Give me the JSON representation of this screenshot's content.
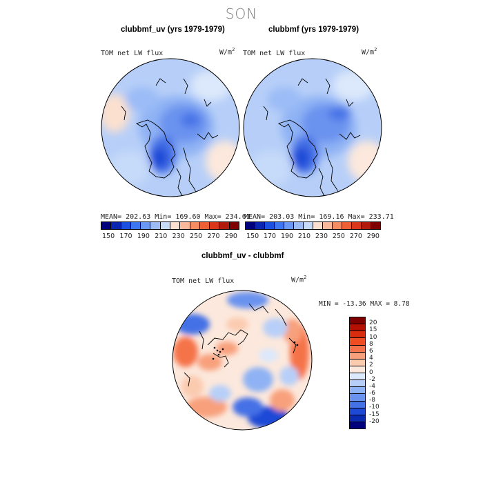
{
  "page_title": "SON",
  "panels": [
    {
      "title": "clubbmf_uv (yrs 1979-1979)",
      "variable": "TOM net LW flux",
      "units": "W/m",
      "units_exp": "2",
      "stats": "MEAN= 202.63   Min= 169.60   Max= 234.61"
    },
    {
      "title": "clubbmf (yrs 1979-1979)",
      "variable": "TOM net LW flux",
      "units": "W/m",
      "units_exp": "2",
      "stats": "MEAN= 203.03   Min= 169.16   Max= 233.71"
    }
  ],
  "difference": {
    "title": "clubbmf_uv - clubbmf",
    "variable": "TOM net LW flux",
    "units": "W/m",
    "units_exp": "2",
    "stats": "MIN = -13.36 MAX =   8.78"
  },
  "colorbar_fields": {
    "colors": [
      "#00007f",
      "#0a26b0",
      "#1a4fe0",
      "#3e75f0",
      "#6b98f5",
      "#9bbcf7",
      "#c6daf9",
      "#fbe0cf",
      "#f9b99a",
      "#f68d62",
      "#ee5f35",
      "#d9361b",
      "#b21a0e",
      "#7f0000"
    ],
    "labels": [
      "150",
      "170",
      "190",
      "210",
      "230",
      "250",
      "270",
      "290"
    ]
  },
  "colorbar_diff": {
    "colors": [
      "#7f0000",
      "#b51000",
      "#d92b0e",
      "#ee4c22",
      "#f5734a",
      "#f8a07c",
      "#fbcbb0",
      "#fce8dc",
      "#dce8fb",
      "#b7cff8",
      "#8fb2f4",
      "#6a93ef",
      "#4471e6",
      "#1d49d6",
      "#0a2ab2",
      "#00007f"
    ],
    "labels": [
      "20",
      "15",
      "10",
      "8",
      "6",
      "4",
      "2",
      "0",
      "-2",
      "-4",
      "-6",
      "-8",
      "-10",
      "-15",
      "-20"
    ]
  }
}
